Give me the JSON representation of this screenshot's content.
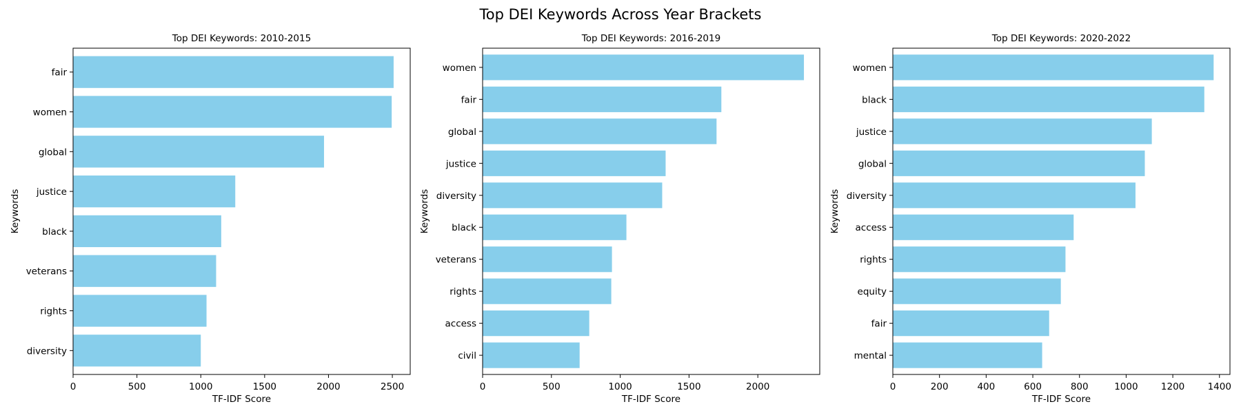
{
  "figure": {
    "title": "Top DEI Keywords Across Year Brackets"
  },
  "chart_data": [
    {
      "type": "bar",
      "orientation": "horizontal",
      "title": "Top DEI Keywords: 2010-2015",
      "xlabel": "TF-IDF Score",
      "ylabel": "Keywords",
      "xlim": [
        0,
        2640
      ],
      "xticks": [
        0,
        500,
        1000,
        1500,
        2000,
        2500
      ],
      "bar_color": "#87CEEB",
      "grid": false,
      "categories": [
        "fair",
        "women",
        "global",
        "justice",
        "black",
        "veterans",
        "rights",
        "diversity"
      ],
      "values": [
        2510,
        2495,
        1965,
        1270,
        1160,
        1120,
        1045,
        1000
      ]
    },
    {
      "type": "bar",
      "orientation": "horizontal",
      "title": "Top DEI Keywords: 2016-2019",
      "xlabel": "TF-IDF Score",
      "ylabel": "Keywords",
      "xlim": [
        0,
        2450
      ],
      "xticks": [
        0,
        500,
        1000,
        1500,
        2000
      ],
      "bar_color": "#87CEEB",
      "grid": false,
      "categories": [
        "women",
        "fair",
        "global",
        "justice",
        "diversity",
        "black",
        "veterans",
        "rights",
        "access",
        "civil"
      ],
      "values": [
        2335,
        1735,
        1700,
        1330,
        1305,
        1045,
        940,
        935,
        775,
        705
      ]
    },
    {
      "type": "bar",
      "orientation": "horizontal",
      "title": "Top DEI Keywords: 2020-2022",
      "xlabel": "TF-IDF Score",
      "ylabel": "Keywords",
      "xlim": [
        0,
        1445
      ],
      "xticks": [
        0,
        200,
        400,
        600,
        800,
        1000,
        1200,
        1400
      ],
      "bar_color": "#87CEEB",
      "grid": false,
      "categories": [
        "women",
        "black",
        "justice",
        "global",
        "diversity",
        "access",
        "rights",
        "equity",
        "fair",
        "mental"
      ],
      "values": [
        1375,
        1335,
        1110,
        1080,
        1040,
        775,
        740,
        720,
        670,
        640
      ]
    }
  ]
}
